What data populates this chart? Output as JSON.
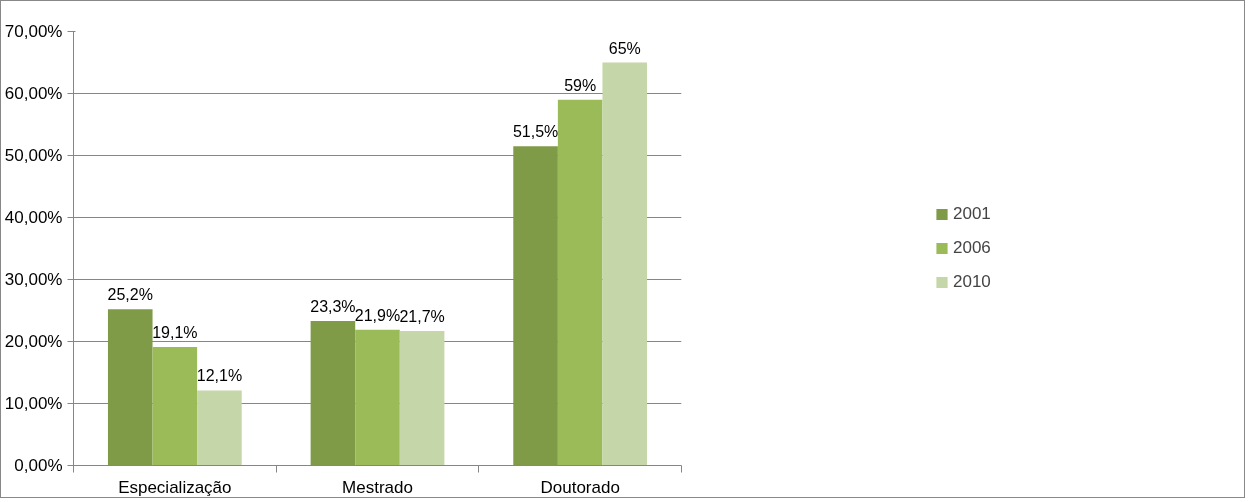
{
  "chart_data": {
    "type": "bar",
    "categories": [
      "Especialização",
      "Mestrado",
      "Doutorado"
    ],
    "series": [
      {
        "name": "2001",
        "color": "#7f9b48",
        "values": [
          25.2,
          23.3,
          51.5
        ],
        "value_labels": [
          "25,2%",
          "23,3%",
          "51,5%"
        ]
      },
      {
        "name": "2006",
        "color": "#9bbb59",
        "values": [
          19.1,
          21.9,
          59
        ],
        "value_labels": [
          "19,1%",
          "21,9%",
          "59%"
        ]
      },
      {
        "name": "2010",
        "color": "#c5d6a8",
        "values": [
          12.1,
          21.7,
          65
        ],
        "value_labels": [
          "12,1%",
          "21,7%",
          "65%"
        ]
      }
    ],
    "ylim": [
      0,
      70
    ],
    "yticks": [
      {
        "value": 0,
        "label": "0,00%"
      },
      {
        "value": 10,
        "label": "10,00%"
      },
      {
        "value": 20,
        "label": "20,00%"
      },
      {
        "value": 30,
        "label": "30,00%"
      },
      {
        "value": 40,
        "label": "40,00%"
      },
      {
        "value": 50,
        "label": "50,00%"
      },
      {
        "value": 60,
        "label": "60,00%"
      },
      {
        "value": 70,
        "label": "70,00%"
      }
    ],
    "grid": "y",
    "legend": "right"
  }
}
